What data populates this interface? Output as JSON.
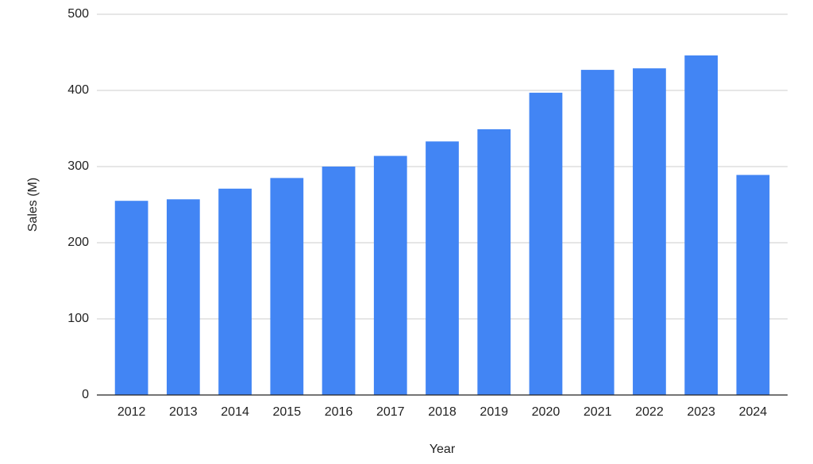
{
  "chart_data": {
    "type": "bar",
    "x_label": "Year",
    "y_label": "Sales (M)",
    "categories": [
      "2012",
      "2013",
      "2014",
      "2015",
      "2016",
      "2017",
      "2018",
      "2019",
      "2020",
      "2021",
      "2022",
      "2023",
      "2024"
    ],
    "values": [
      255,
      257,
      271,
      285,
      300,
      314,
      333,
      349,
      397,
      427,
      429,
      446,
      289
    ],
    "color": "#4285f4",
    "ylim": [
      0,
      500
    ],
    "yticks": [
      0,
      100,
      200,
      300,
      400,
      500
    ],
    "grid": true
  }
}
